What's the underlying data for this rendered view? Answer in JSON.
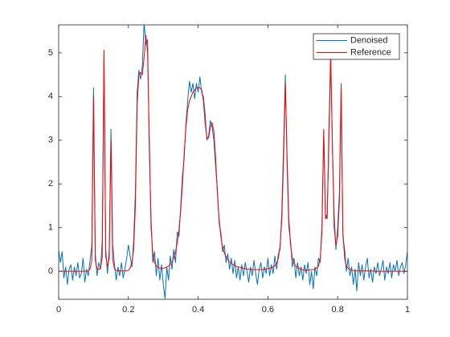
{
  "chart_data": {
    "type": "line",
    "x": [
      0,
      0.005,
      0.01,
      0.015,
      0.02,
      0.025,
      0.03,
      0.035,
      0.04,
      0.045,
      0.05,
      0.055,
      0.06,
      0.065,
      0.07,
      0.075,
      0.08,
      0.085,
      0.09,
      0.095,
      0.1,
      0.105,
      0.11,
      0.115,
      0.12,
      0.125,
      0.13,
      0.135,
      0.14,
      0.145,
      0.15,
      0.155,
      0.16,
      0.165,
      0.17,
      0.175,
      0.18,
      0.185,
      0.19,
      0.195,
      0.2,
      0.205,
      0.21,
      0.215,
      0.22,
      0.225,
      0.23,
      0.235,
      0.24,
      0.245,
      0.25,
      0.255,
      0.26,
      0.265,
      0.27,
      0.275,
      0.28,
      0.285,
      0.29,
      0.295,
      0.3,
      0.305,
      0.31,
      0.315,
      0.32,
      0.325,
      0.33,
      0.335,
      0.34,
      0.345,
      0.35,
      0.355,
      0.36,
      0.365,
      0.37,
      0.375,
      0.38,
      0.385,
      0.39,
      0.395,
      0.4,
      0.405,
      0.41,
      0.415,
      0.42,
      0.425,
      0.43,
      0.435,
      0.44,
      0.445,
      0.45,
      0.455,
      0.46,
      0.465,
      0.47,
      0.475,
      0.48,
      0.485,
      0.49,
      0.495,
      0.5,
      0.505,
      0.51,
      0.515,
      0.52,
      0.525,
      0.53,
      0.535,
      0.54,
      0.545,
      0.55,
      0.555,
      0.56,
      0.565,
      0.57,
      0.575,
      0.58,
      0.585,
      0.59,
      0.595,
      0.6,
      0.605,
      0.61,
      0.615,
      0.62,
      0.625,
      0.63,
      0.635,
      0.64,
      0.645,
      0.65,
      0.655,
      0.66,
      0.665,
      0.67,
      0.675,
      0.68,
      0.685,
      0.69,
      0.695,
      0.7,
      0.705,
      0.71,
      0.715,
      0.72,
      0.725,
      0.73,
      0.735,
      0.74,
      0.745,
      0.75,
      0.755,
      0.76,
      0.765,
      0.77,
      0.775,
      0.78,
      0.785,
      0.79,
      0.795,
      0.8,
      0.805,
      0.81,
      0.815,
      0.82,
      0.825,
      0.83,
      0.835,
      0.84,
      0.845,
      0.85,
      0.855,
      0.86,
      0.865,
      0.87,
      0.875,
      0.88,
      0.885,
      0.89,
      0.895,
      0.9,
      0.905,
      0.91,
      0.915,
      0.92,
      0.925,
      0.93,
      0.935,
      0.94,
      0.945,
      0.95,
      0.955,
      0.96,
      0.965,
      0.97,
      0.975,
      0.98,
      0.985,
      0.99,
      0.995,
      1
    ],
    "series": [
      {
        "name": "Denoised",
        "color": "#0072bd",
        "values": [
          0.48,
          0.2,
          0.45,
          -0.15,
          0.1,
          -0.3,
          0.05,
          0.15,
          -0.2,
          0.1,
          -0.1,
          0.2,
          -0.15,
          -0.05,
          0.3,
          -0.25,
          0.05,
          -0.1,
          0.25,
          0.6,
          4.2,
          0.4,
          -0.1,
          0.2,
          0.05,
          0.7,
          4.95,
          0.5,
          -0.05,
          0.5,
          3.25,
          0.6,
          0.15,
          -0.2,
          0.1,
          -0.1,
          0.2,
          -0.15,
          0.05,
          0.3,
          0.6,
          0.35,
          0.1,
          0.7,
          1.8,
          4.1,
          4.6,
          4.4,
          4.7,
          5.7,
          5.2,
          5.3,
          2.7,
          1.2,
          0.2,
          0.45,
          -0.1,
          0.3,
          -0.2,
          0.15,
          -0.3,
          -0.62,
          0.1,
          -0.2,
          0.35,
          0.05,
          0.5,
          0.2,
          0.9,
          0.8,
          1.5,
          2.2,
          2.6,
          3.4,
          3.9,
          4.35,
          4.1,
          4.3,
          3.95,
          4.3,
          4.1,
          4.45,
          4.1,
          4.0,
          3.6,
          3.0,
          3.1,
          3.45,
          3.3,
          3.0,
          2.4,
          1.9,
          1.1,
          0.9,
          0.45,
          0.6,
          0.2,
          0.4,
          0.05,
          0.3,
          -0.05,
          0.25,
          -0.15,
          0.1,
          -0.2,
          0.15,
          -0.1,
          0.2,
          0.0,
          -0.25,
          0.1,
          -0.1,
          0.25,
          -0.05,
          -0.3,
          0.05,
          0.2,
          -0.15,
          0.1,
          -0.05,
          0.3,
          -0.1,
          0.15,
          -0.05,
          0.35,
          0.05,
          0.4,
          0.5,
          1.4,
          2.9,
          4.5,
          2.4,
          1.0,
          0.7,
          0.1,
          0.3,
          -0.15,
          0.2,
          -0.1,
          0.1,
          -0.2,
          0.15,
          -0.05,
          0.2,
          -0.3,
          0.0,
          -0.4,
          0.1,
          -0.1,
          0.3,
          0.2,
          1.1,
          3.2,
          1.3,
          1.2,
          3.3,
          5.0,
          2.8,
          1.3,
          0.5,
          1.0,
          1.8,
          4.3,
          0.8,
          0.5,
          0.0,
          0.3,
          -0.1,
          0.1,
          -0.3,
          0.05,
          -0.45,
          0.2,
          -0.1,
          0.15,
          -0.2,
          0.1,
          0.3,
          -0.15,
          0.05,
          -0.25,
          0.1,
          -0.05,
          0.2,
          -0.1,
          0.05,
          0.25,
          -0.2,
          0.1,
          -0.05,
          0.2,
          -0.15,
          0.15,
          0.0,
          0.25,
          -0.1,
          0.1,
          0.2,
          -0.05,
          0.15,
          0.45
        ]
      },
      {
        "name": "Reference",
        "color": "#ff0000",
        "values": [
          0,
          0,
          0,
          0,
          0,
          0,
          0,
          0,
          0,
          0,
          0,
          0,
          0,
          0,
          0,
          0,
          0,
          0.01,
          0.05,
          0.25,
          4.0,
          0.26,
          0.06,
          0.04,
          0.07,
          0.33,
          5.06,
          0.34,
          0.12,
          0.29,
          3.01,
          0.27,
          0.06,
          0.02,
          0.01,
          0.01,
          0.01,
          0.01,
          0.01,
          0.01,
          0.02,
          0.08,
          0.2,
          0.5,
          1.5,
          3.8,
          4.5,
          4.55,
          4.5,
          4.9,
          5.4,
          5.0,
          3.0,
          1.0,
          0.4,
          0.2,
          0.12,
          0.09,
          0.07,
          0.07,
          0.07,
          0.08,
          0.1,
          0.12,
          0.16,
          0.22,
          0.3,
          0.45,
          0.65,
          0.95,
          1.4,
          2.0,
          2.7,
          3.3,
          3.7,
          3.9,
          4.0,
          4.1,
          4.15,
          4.2,
          4.2,
          4.2,
          4.15,
          3.9,
          3.4,
          3.05,
          3.05,
          3.3,
          3.4,
          3.2,
          2.6,
          1.8,
          1.2,
          0.8,
          0.55,
          0.42,
          0.33,
          0.27,
          0.22,
          0.18,
          0.15,
          0.13,
          0.11,
          0.1,
          0.09,
          0.08,
          0.07,
          0.06,
          0.05,
          0.05,
          0.04,
          0.04,
          0.04,
          0.04,
          0.04,
          0.04,
          0.04,
          0.04,
          0.05,
          0.05,
          0.06,
          0.07,
          0.08,
          0.1,
          0.13,
          0.18,
          0.3,
          0.6,
          1.2,
          2.6,
          4.3,
          2.6,
          1.2,
          0.6,
          0.3,
          0.18,
          0.12,
          0.09,
          0.07,
          0.05,
          0.04,
          0.03,
          0.03,
          0.03,
          0.03,
          0.04,
          0.04,
          0.05,
          0.08,
          0.12,
          0.3,
          0.9,
          3.25,
          1.2,
          1.3,
          3.0,
          4.95,
          2.9,
          1.0,
          0.6,
          0.8,
          1.6,
          4.2,
          0.9,
          0.3,
          0.12,
          0.07,
          0.05,
          0.03,
          0.02,
          0.01,
          0.01,
          0.01,
          0.01,
          0.01,
          0.01,
          0.01,
          0.01,
          0.01,
          0.01,
          0.01,
          0,
          0,
          0,
          0,
          0,
          0,
          0,
          0,
          0,
          0,
          0,
          0,
          0,
          0,
          0,
          0,
          0,
          0,
          0,
          0
        ]
      }
    ],
    "xlim": [
      0,
      1
    ],
    "xticks": [
      0,
      0.2,
      0.4,
      0.6,
      0.8,
      1
    ],
    "ylim": [
      -0.64,
      5.64
    ],
    "yticks": [
      0,
      1,
      2,
      3,
      4,
      5
    ],
    "legend": "northeast",
    "grid": false
  }
}
